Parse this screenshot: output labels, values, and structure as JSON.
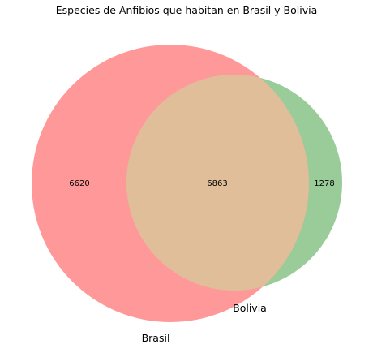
{
  "title": "Especies de Anfibios que habitan en Brasil y Bolivia",
  "chart_data": {
    "type": "venn",
    "title": "Especies de Anfibios que habitan en Brasil y Bolivia",
    "sets": [
      {
        "name": "Brasil",
        "only": "6620",
        "color": "#ff9999"
      },
      {
        "name": "Bolivia",
        "only": "1278",
        "color": "#99cc99"
      }
    ],
    "intersection": "6863",
    "intersection_color": "#e0be99"
  }
}
